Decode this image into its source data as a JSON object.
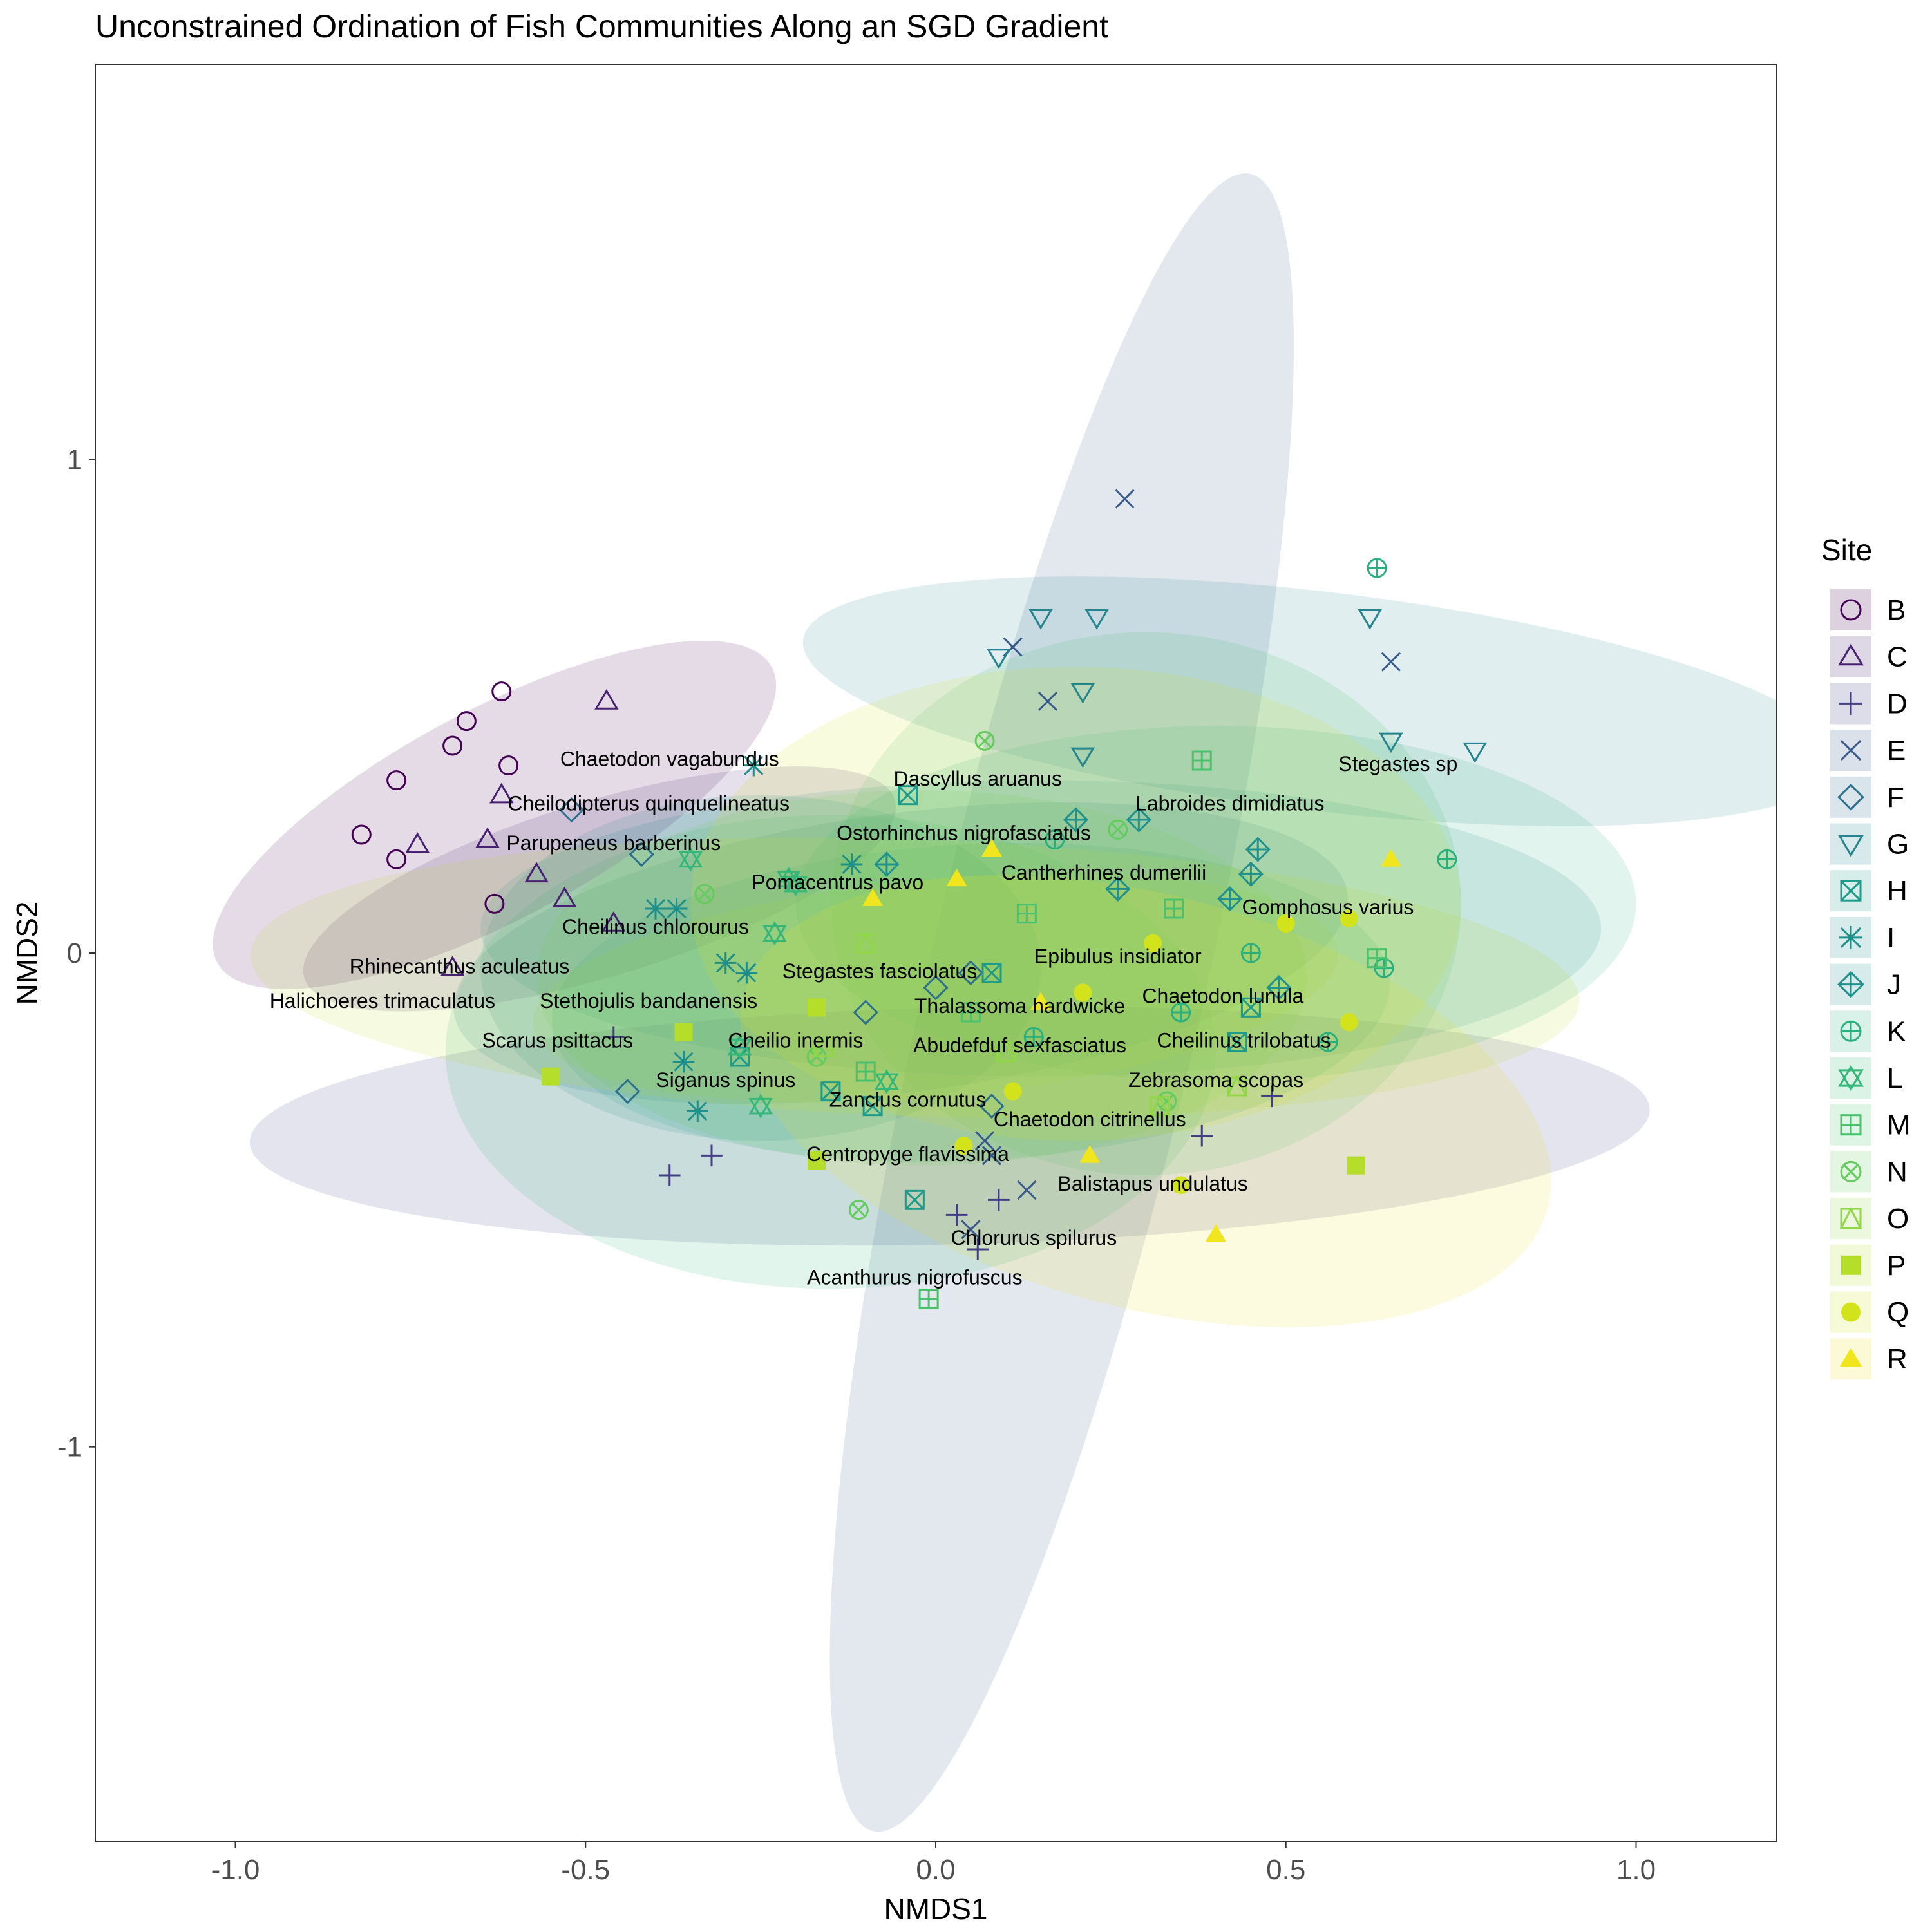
{
  "chart_data": {
    "type": "scatter",
    "title": "Unconstrained Ordination of Fish Communities Along an SGD Gradient",
    "xlabel": "NMDS1",
    "ylabel": "NMDS2",
    "xlim": [
      -1.2,
      1.2
    ],
    "ylim": [
      -1.8,
      1.8
    ],
    "xticks": [
      -1.0,
      -0.5,
      0.0,
      0.5,
      1.0
    ],
    "xtick_labels": [
      "-1.0",
      "-0.5",
      "0.0",
      "0.5",
      "1.0"
    ],
    "yticks": [
      -1,
      0,
      1
    ],
    "ytick_labels": [
      "-1",
      "0",
      "1"
    ],
    "grid": false,
    "legend": {
      "title": "Site",
      "position": "right"
    },
    "series": [
      {
        "name": "B",
        "shape": "circle-open",
        "color": "#440154",
        "ellipse": {
          "cx": -0.63,
          "cy": 0.28,
          "rx": 0.5,
          "ry": 0.19,
          "angle": 40,
          "fill": "#440154"
        },
        "points": [
          [
            -0.62,
            0.53
          ],
          [
            -0.67,
            0.47
          ],
          [
            -0.69,
            0.42
          ],
          [
            -0.61,
            0.38
          ],
          [
            -0.77,
            0.35
          ],
          [
            -0.82,
            0.24
          ],
          [
            -0.77,
            0.19
          ],
          [
            -0.63,
            0.1
          ]
        ]
      },
      {
        "name": "C",
        "shape": "triangle-open",
        "color": "#482173",
        "ellipse": {
          "cx": -0.48,
          "cy": 0.13,
          "rx": 0.46,
          "ry": 0.17,
          "angle": 25,
          "fill": "#482173"
        },
        "points": [
          [
            -0.47,
            0.51
          ],
          [
            -0.62,
            0.32
          ],
          [
            -0.64,
            0.23
          ],
          [
            -0.74,
            0.22
          ],
          [
            -0.57,
            0.16
          ],
          [
            -0.53,
            0.11
          ],
          [
            -0.46,
            0.06
          ],
          [
            -0.69,
            -0.03
          ]
        ]
      },
      {
        "name": "D",
        "shape": "plus",
        "color": "#433e85",
        "ellipse": {
          "cx": 0.02,
          "cy": -0.35,
          "rx": 1.0,
          "ry": 0.24,
          "angle": 2,
          "fill": "#433e85"
        },
        "points": [
          [
            -0.46,
            -0.17
          ],
          [
            -0.38,
            -0.45
          ],
          [
            -0.32,
            -0.41
          ],
          [
            0.03,
            -0.53
          ],
          [
            0.09,
            -0.5
          ],
          [
            0.38,
            -0.37
          ],
          [
            0.48,
            -0.29
          ],
          [
            0.06,
            -0.6
          ]
        ]
      },
      {
        "name": "E",
        "shape": "cross",
        "color": "#38598c",
        "ellipse": {
          "cx": 0.18,
          "cy": -0.1,
          "rx": 1.7,
          "ry": 0.2,
          "angle": 81,
          "fill": "#38598c"
        },
        "points": [
          [
            0.27,
            0.92
          ],
          [
            0.11,
            0.62
          ],
          [
            0.16,
            0.51
          ],
          [
            0.65,
            0.59
          ],
          [
            0.08,
            -0.41
          ],
          [
            0.13,
            -0.48
          ],
          [
            0.07,
            -0.38
          ],
          [
            0.05,
            -0.56
          ]
        ]
      },
      {
        "name": "F",
        "shape": "diamond-open",
        "color": "#2d708e",
        "ellipse": {
          "cx": -0.05,
          "cy": 0.0,
          "rx": 0.65,
          "ry": 0.28,
          "angle": 12,
          "fill": "#2d708e"
        },
        "points": [
          [
            -0.52,
            0.29
          ],
          [
            -0.42,
            0.2
          ],
          [
            -0.44,
            -0.28
          ],
          [
            -0.1,
            -0.12
          ],
          [
            0.0,
            -0.07
          ],
          [
            0.05,
            -0.04
          ],
          [
            0.08,
            -0.31
          ]
        ]
      },
      {
        "name": "G",
        "shape": "triangle-down-open",
        "color": "#25858e",
        "ellipse": {
          "cx": 0.55,
          "cy": 0.51,
          "rx": 0.75,
          "ry": 0.22,
          "angle": -10,
          "fill": "#25858e"
        },
        "points": [
          [
            0.15,
            0.68
          ],
          [
            0.23,
            0.68
          ],
          [
            0.09,
            0.6
          ],
          [
            0.21,
            0.53
          ],
          [
            0.21,
            0.4
          ],
          [
            0.62,
            0.68
          ],
          [
            0.65,
            0.43
          ],
          [
            0.77,
            0.41
          ]
        ]
      },
      {
        "name": "H",
        "shape": "square-x",
        "color": "#1e9b8a",
        "ellipse": {
          "cx": 0.05,
          "cy": -0.1,
          "rx": 0.6,
          "ry": 0.32,
          "angle": 5,
          "fill": "#1e9b8a"
        },
        "points": [
          [
            -0.04,
            0.32
          ],
          [
            0.08,
            -0.04
          ],
          [
            -0.28,
            -0.21
          ],
          [
            -0.15,
            -0.28
          ],
          [
            -0.09,
            -0.31
          ],
          [
            -0.03,
            -0.5
          ],
          [
            0.45,
            -0.11
          ],
          [
            0.43,
            -0.18
          ]
        ]
      },
      {
        "name": "I",
        "shape": "asterisk",
        "color": "#1f8f8a",
        "ellipse": {
          "cx": -0.25,
          "cy": -0.03,
          "rx": 0.4,
          "ry": 0.35,
          "angle": 0,
          "fill": "#1f8f8a"
        },
        "points": [
          [
            -0.26,
            0.38
          ],
          [
            -0.4,
            0.09
          ],
          [
            -0.37,
            0.09
          ],
          [
            -0.3,
            -0.02
          ],
          [
            -0.27,
            -0.04
          ],
          [
            -0.36,
            -0.22
          ],
          [
            -0.34,
            -0.32
          ],
          [
            -0.12,
            0.18
          ]
        ]
      },
      {
        "name": "J",
        "shape": "diamond-plus",
        "color": "#21918c",
        "ellipse": {
          "cx": 0.15,
          "cy": 0.05,
          "rx": 0.8,
          "ry": 0.3,
          "angle": 0,
          "fill": "#21918c"
        },
        "points": [
          [
            -0.07,
            0.18
          ],
          [
            0.2,
            0.27
          ],
          [
            0.29,
            0.27
          ],
          [
            0.26,
            0.13
          ],
          [
            0.46,
            0.21
          ],
          [
            0.45,
            0.16
          ],
          [
            0.42,
            0.11
          ],
          [
            0.49,
            -0.07
          ]
        ]
      },
      {
        "name": "K",
        "shape": "circle-plus",
        "color": "#2ab07f",
        "ellipse": {
          "cx": 0.4,
          "cy": 0.1,
          "rx": 0.6,
          "ry": 0.36,
          "angle": 0,
          "fill": "#2ab07f"
        },
        "points": [
          [
            0.63,
            0.78
          ],
          [
            0.73,
            0.19
          ],
          [
            0.64,
            -0.03
          ],
          [
            0.45,
            0.0
          ],
          [
            0.35,
            -0.12
          ],
          [
            0.14,
            -0.17
          ],
          [
            0.56,
            -0.18
          ],
          [
            0.17,
            0.23
          ]
        ]
      },
      {
        "name": "L",
        "shape": "star-of-david",
        "color": "#35b779",
        "ellipse": {
          "cx": -0.15,
          "cy": -0.2,
          "rx": 0.55,
          "ry": 0.48,
          "angle": 0,
          "fill": "#35b779"
        },
        "points": [
          [
            -0.35,
            0.19
          ],
          [
            -0.23,
            0.04
          ],
          [
            -0.21,
            0.15
          ],
          [
            -0.25,
            -0.31
          ],
          [
            -0.28,
            -0.19
          ],
          [
            -0.07,
            -0.26
          ],
          [
            -0.2,
            0.14
          ]
        ]
      },
      {
        "name": "M",
        "shape": "square-plus",
        "color": "#4ac16d",
        "ellipse": {
          "cx": 0.3,
          "cy": 0.1,
          "rx": 0.45,
          "ry": 0.55,
          "angle": 0,
          "fill": "#4ac16d"
        },
        "points": [
          [
            0.38,
            0.39
          ],
          [
            0.34,
            0.09
          ],
          [
            0.63,
            -0.01
          ],
          [
            -0.1,
            -0.24
          ],
          [
            0.05,
            -0.12
          ],
          [
            -0.01,
            -0.7
          ],
          [
            0.13,
            0.08
          ]
        ]
      },
      {
        "name": "N",
        "shape": "circle-x",
        "color": "#64cb5d",
        "ellipse": {
          "cx": -0.02,
          "cy": -0.05,
          "rx": 0.55,
          "ry": 0.38,
          "angle": 0,
          "fill": "#64cb5d"
        },
        "points": [
          [
            0.07,
            0.43
          ],
          [
            -0.33,
            0.12
          ],
          [
            -0.17,
            -0.21
          ],
          [
            -0.11,
            -0.52
          ],
          [
            0.26,
            0.25
          ],
          [
            0.33,
            -0.3
          ]
        ]
      },
      {
        "name": "O",
        "shape": "triangle-square",
        "color": "#8fd744",
        "ellipse": {
          "cx": 0.0,
          "cy": -0.07,
          "rx": 0.58,
          "ry": 0.22,
          "angle": 8,
          "fill": "#8fd744"
        },
        "points": [
          [
            -0.1,
            0.02
          ],
          [
            -0.16,
            -0.19
          ],
          [
            0.1,
            -0.2
          ],
          [
            0.32,
            -0.31
          ],
          [
            0.43,
            -0.27
          ]
        ]
      },
      {
        "name": "P",
        "shape": "square-filled",
        "color": "#b5de2b",
        "ellipse": {
          "cx": -0.03,
          "cy": -0.05,
          "rx": 0.95,
          "ry": 0.28,
          "angle": -3,
          "fill": "#b5de2b"
        },
        "points": [
          [
            -0.55,
            -0.25
          ],
          [
            -0.36,
            -0.16
          ],
          [
            -0.17,
            -0.11
          ],
          [
            -0.17,
            -0.42
          ],
          [
            0.6,
            -0.43
          ]
        ]
      },
      {
        "name": "Q",
        "shape": "circle-filled",
        "color": "#d2e21b",
        "ellipse": {
          "cx": 0.2,
          "cy": 0.1,
          "rx": 0.55,
          "ry": 0.48,
          "angle": 0,
          "fill": "#d2e21b"
        },
        "points": [
          [
            0.31,
            0.02
          ],
          [
            0.5,
            0.06
          ],
          [
            0.59,
            0.07
          ],
          [
            0.21,
            -0.08
          ],
          [
            0.11,
            -0.28
          ],
          [
            0.59,
            -0.14
          ],
          [
            0.04,
            -0.39
          ],
          [
            0.35,
            -0.47
          ]
        ]
      },
      {
        "name": "R",
        "shape": "triangle-filled",
        "color": "#f1e51d",
        "ellipse": {
          "cx": 0.3,
          "cy": -0.3,
          "rx": 0.62,
          "ry": 0.4,
          "angle": -28,
          "fill": "#f1e51d"
        },
        "points": [
          [
            -0.09,
            0.11
          ],
          [
            0.03,
            0.15
          ],
          [
            0.08,
            0.21
          ],
          [
            0.65,
            0.19
          ],
          [
            0.22,
            -0.41
          ],
          [
            0.4,
            -0.57
          ],
          [
            0.15,
            -0.1
          ]
        ]
      }
    ],
    "species_labels": [
      {
        "text": "Chaetodon vagabundus",
        "x": -0.38,
        "y": 0.39
      },
      {
        "text": "Cheilodipterus quinquelineatus",
        "x": -0.41,
        "y": 0.3
      },
      {
        "text": "Parupeneus barberinus",
        "x": -0.46,
        "y": 0.22
      },
      {
        "text": "Cheilinus chlorourus",
        "x": -0.4,
        "y": 0.05
      },
      {
        "text": "Rhinecanthus aculeatus",
        "x": -0.68,
        "y": -0.03
      },
      {
        "text": "Halichoeres trimaculatus",
        "x": -0.79,
        "y": -0.1
      },
      {
        "text": "Stethojulis bandanensis",
        "x": -0.41,
        "y": -0.1
      },
      {
        "text": "Scarus psittacus",
        "x": -0.54,
        "y": -0.18
      },
      {
        "text": "Cheilio inermis",
        "x": -0.2,
        "y": -0.18
      },
      {
        "text": "Siganus spinus",
        "x": -0.3,
        "y": -0.26
      },
      {
        "text": "Dascyllus aruanus",
        "x": 0.06,
        "y": 0.35
      },
      {
        "text": "Labroides dimidiatus",
        "x": 0.42,
        "y": 0.3
      },
      {
        "text": "Stegastes sp",
        "x": 0.66,
        "y": 0.38
      },
      {
        "text": "Ostorhinchus nigrofasciatus",
        "x": 0.04,
        "y": 0.24
      },
      {
        "text": "Cantherhines dumerilii",
        "x": 0.24,
        "y": 0.16
      },
      {
        "text": "Pomacentrus pavo",
        "x": -0.14,
        "y": 0.14
      },
      {
        "text": "Gomphosus varius",
        "x": 0.56,
        "y": 0.09
      },
      {
        "text": "Epibulus insidiator",
        "x": 0.26,
        "y": -0.01
      },
      {
        "text": "Stegastes fasciolatus",
        "x": -0.08,
        "y": -0.04
      },
      {
        "text": "Thalassoma hardwicke",
        "x": 0.12,
        "y": -0.11
      },
      {
        "text": "Chaetodon lunula",
        "x": 0.41,
        "y": -0.09
      },
      {
        "text": "Abudefduf sexfasciatus",
        "x": 0.12,
        "y": -0.19
      },
      {
        "text": "Cheilinus trilobatus",
        "x": 0.44,
        "y": -0.18
      },
      {
        "text": "Zebrasoma scopas",
        "x": 0.4,
        "y": -0.26
      },
      {
        "text": "Zanclus cornutus",
        "x": -0.04,
        "y": -0.3
      },
      {
        "text": "Chaetodon citrinellus",
        "x": 0.22,
        "y": -0.34
      },
      {
        "text": "Centropyge flavissima",
        "x": -0.04,
        "y": -0.41
      },
      {
        "text": "Balistapus undulatus",
        "x": 0.31,
        "y": -0.47
      },
      {
        "text": "Chlorurus spilurus",
        "x": 0.14,
        "y": -0.58
      },
      {
        "text": "Acanthurus nigrofuscus",
        "x": -0.03,
        "y": -0.66
      }
    ]
  }
}
